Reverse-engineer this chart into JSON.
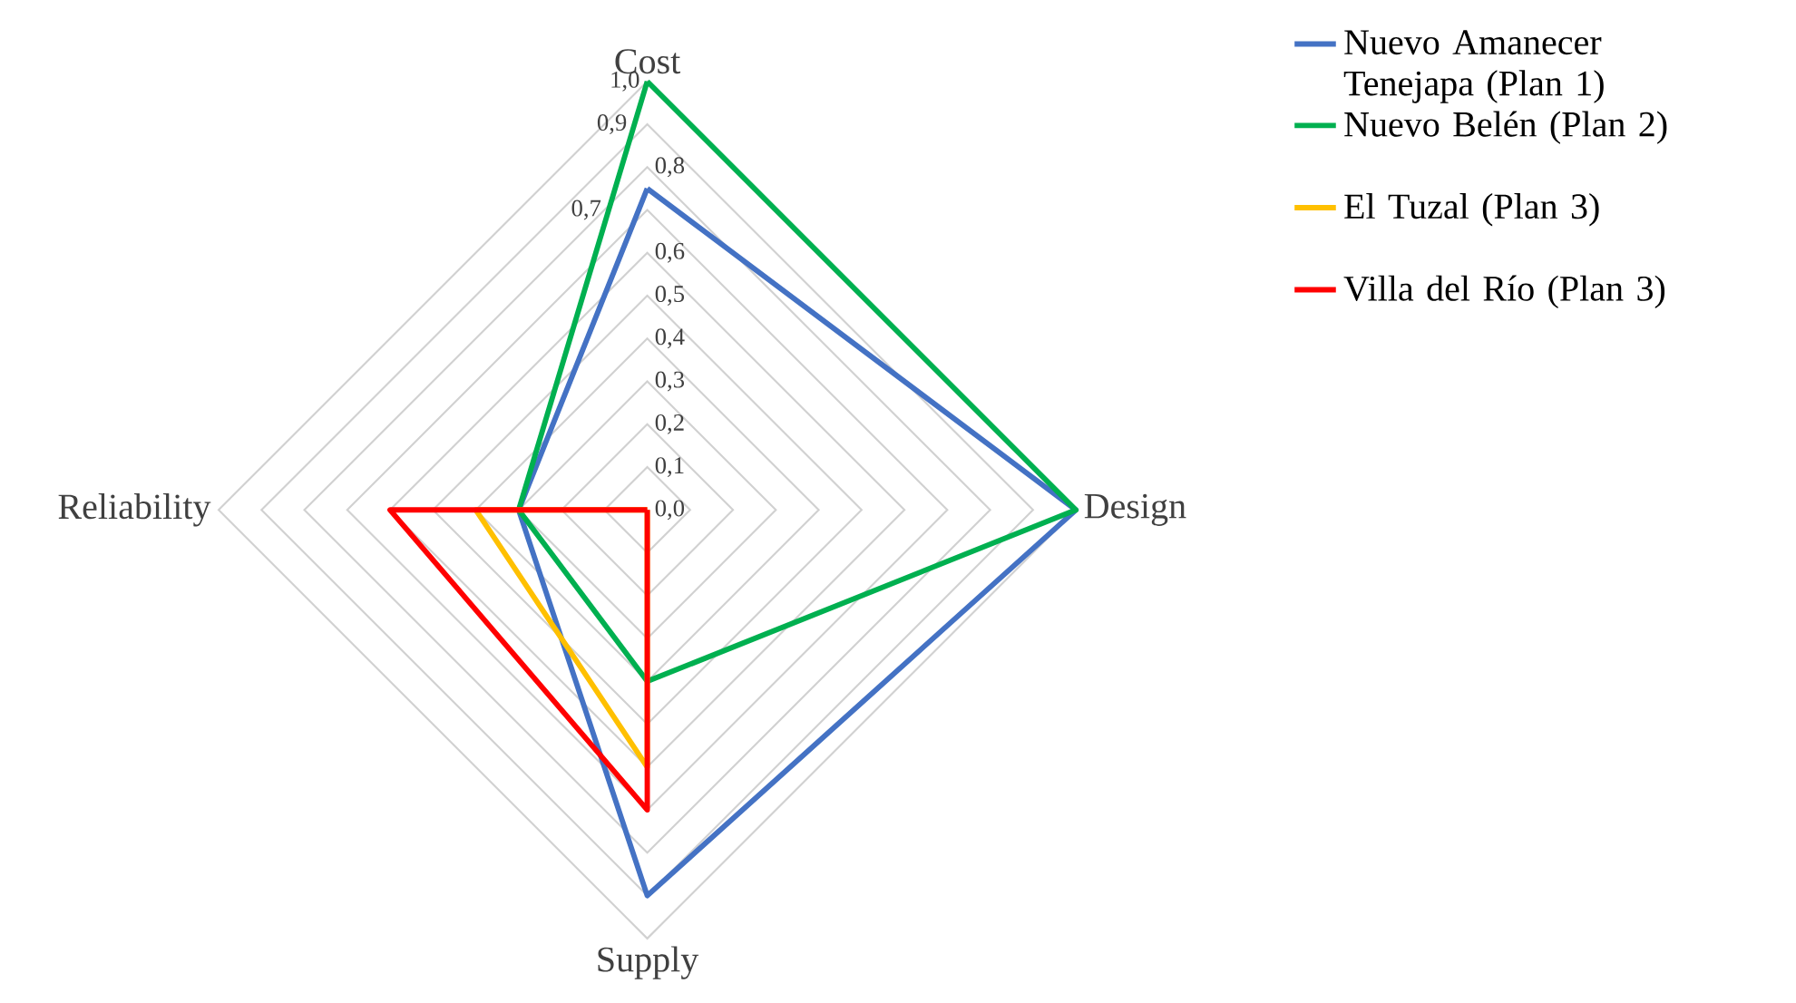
{
  "chart_data": {
    "type": "radar",
    "categories": [
      "Cost",
      "Design",
      "Supply",
      "Reliability"
    ],
    "series": [
      {
        "name": "Nuevo Amanecer Tenejapa (Plan 1)",
        "color": "#4472c4",
        "values": [
          0.75,
          1.0,
          0.9,
          0.3
        ]
      },
      {
        "name": "Nuevo Belén (Plan 2)",
        "color": "#00b050",
        "values": [
          1.0,
          1.0,
          0.4,
          0.3
        ]
      },
      {
        "name": "El Tuzal (Plan 3)",
        "color": "#ffc000",
        "values": [
          0,
          0,
          0.6,
          0.4
        ]
      },
      {
        "name": "Villa del Río (Plan 3)",
        "color": "#ff0000",
        "values": [
          0,
          0,
          0.7,
          0.6
        ]
      }
    ],
    "ylim": [
      0,
      1
    ],
    "yticks": [
      {
        "value": 0,
        "label": "0,0"
      },
      {
        "value": 0.1,
        "label": "0,1"
      },
      {
        "value": 0.2,
        "label": "0,2"
      },
      {
        "value": 0.3,
        "label": "0,3"
      },
      {
        "value": 0.4,
        "label": "0,4"
      },
      {
        "value": 0.5,
        "label": "0,5"
      },
      {
        "value": 0.6,
        "label": "0,6"
      },
      {
        "value": 0.7,
        "label": "0,7"
      },
      {
        "value": 0.8,
        "label": "0,8"
      },
      {
        "value": 0.9,
        "label": "0,9"
      },
      {
        "value": 1.0,
        "label": "1,0"
      }
    ],
    "grid": true,
    "legend": "right",
    "marker": "none",
    "line_style": "solid"
  }
}
